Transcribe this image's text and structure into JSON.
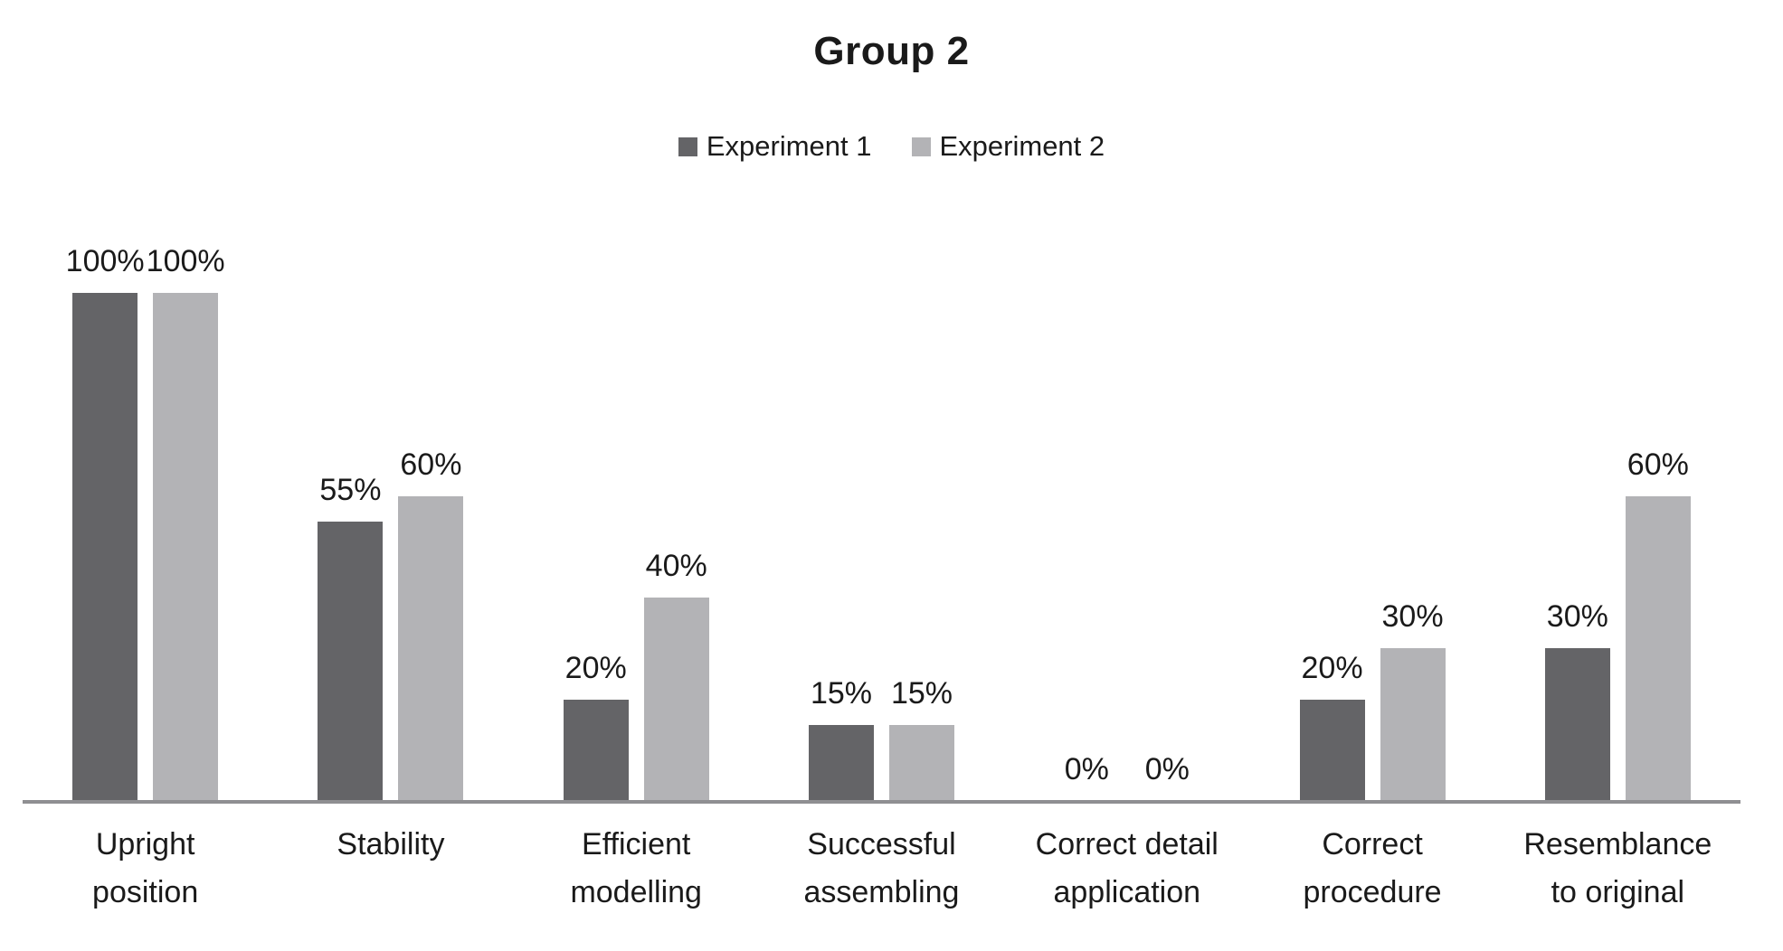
{
  "chart_data": {
    "type": "bar",
    "title": "Group 2",
    "categories": [
      "Upright position",
      "Stability",
      "Efficient modelling",
      "Successful assembling",
      "Correct detail application",
      "Correct procedure",
      "Resemblance to original"
    ],
    "categories_wrapped": [
      [
        "Upright",
        "position"
      ],
      [
        "Stability"
      ],
      [
        "Efficient",
        "modelling"
      ],
      [
        "Successful",
        "assembling"
      ],
      [
        "Correct detail",
        "application"
      ],
      [
        "Correct",
        "procedure"
      ],
      [
        "Resemblance",
        "to original"
      ]
    ],
    "series": [
      {
        "name": "Experiment 1",
        "color": "#646467",
        "values": [
          100,
          55,
          20,
          15,
          0,
          20,
          30
        ]
      },
      {
        "name": "Experiment 2",
        "color": "#b3b3b6",
        "values": [
          100,
          60,
          40,
          15,
          0,
          30,
          60
        ]
      }
    ],
    "label_format": "percent",
    "data_labels": [
      [
        "100%",
        "55%",
        "20%",
        "15%",
        "0%",
        "20%",
        "30%"
      ],
      [
        "100%",
        "60%",
        "40%",
        "15%",
        "0%",
        "30%",
        "60%"
      ]
    ],
    "ylim": [
      0,
      100
    ],
    "grid": false,
    "y_axis_visible": false,
    "legend_position": "top",
    "colors": {
      "axis_line": "#8f8f92",
      "text": "#1a1a1a"
    }
  }
}
